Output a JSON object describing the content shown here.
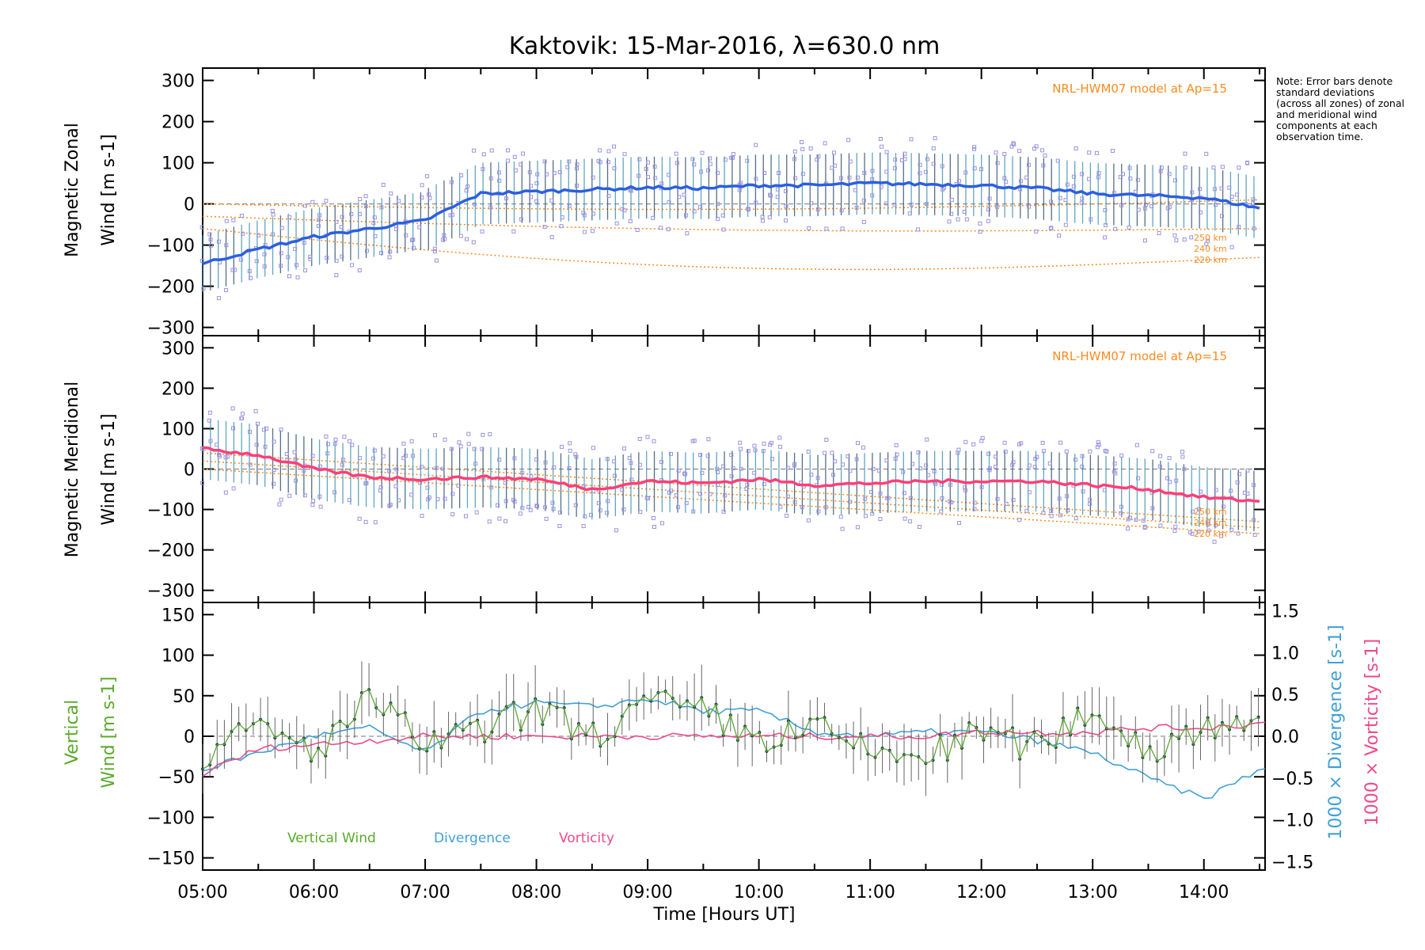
{
  "figure": {
    "title": "Kaktovik: 15-Mar-2016, λ=630.0 nm",
    "note": "Note: Error bars denote standard deviations (across all zones) of zonal and meridional wind components at each observation time.",
    "xlabel": "Time [Hours UT]",
    "colors": {
      "zonal": "#2b5fe0",
      "meridional": "#ff3f78",
      "vertical": "#5aaa2a",
      "divergence": "#3fa0d8",
      "vorticity": "#f04a8a",
      "model": "#ff8a1e",
      "scatter": "#9a94e0"
    }
  },
  "chart_data": [
    {
      "type": "line",
      "panel": "zonal",
      "ylabel_line1": "Magnetic Zonal",
      "ylabel_line2": "Wind [m s-1]",
      "model_label": "NRL-HWM07 model at Ap=15",
      "altitude_labels": [
        "250 km",
        "240 km",
        "220 km"
      ],
      "ylim": [
        -320,
        330
      ],
      "yticks": [
        300,
        200,
        100,
        0,
        -100,
        -200,
        -300
      ],
      "x_hours": [
        5.0,
        5.5,
        6.0,
        6.5,
        7.0,
        7.5,
        8.0,
        8.5,
        9.0,
        9.5,
        10.0,
        10.5,
        11.0,
        11.5,
        12.0,
        12.5,
        13.0,
        13.5,
        14.0,
        14.5
      ],
      "series": [
        {
          "values": [
            -145,
            -110,
            -80,
            -60,
            -40,
            25,
            30,
            35,
            40,
            38,
            45,
            45,
            50,
            48,
            45,
            38,
            25,
            20,
            15,
            -10
          ]
        }
      ]
    },
    {
      "type": "line",
      "panel": "meridional",
      "ylabel_line1": "Magnetic Meridional",
      "ylabel_line2": "Wind [m s-1]",
      "model_label": "NRL-HWM07 model at Ap=15",
      "altitude_labels": [
        "250 km",
        "240 km",
        "220 km"
      ],
      "ylim": [
        -330,
        330
      ],
      "yticks": [
        300,
        200,
        100,
        0,
        -100,
        -200,
        -300
      ],
      "x_hours": [
        5.0,
        5.5,
        6.0,
        6.5,
        7.0,
        7.5,
        8.0,
        8.5,
        9.0,
        9.5,
        10.0,
        10.5,
        11.0,
        11.5,
        12.0,
        12.5,
        13.0,
        13.5,
        14.0,
        14.5
      ],
      "series": [
        {
          "values": [
            50,
            35,
            0,
            -20,
            -25,
            -20,
            -25,
            -50,
            -30,
            -35,
            -25,
            -40,
            -35,
            -30,
            -30,
            -30,
            -40,
            -50,
            -70,
            -80
          ]
        }
      ]
    },
    {
      "type": "line",
      "panel": "vertical",
      "ylabel_line1": "Vertical",
      "ylabel_line2": "Wind [m s-1]",
      "y2label": "1000 × Divergence [s-1]",
      "y3label": "1000 × Vorticity [s-1]",
      "ylim": [
        -165,
        165
      ],
      "yticks": [
        150,
        100,
        50,
        0,
        -50,
        -100,
        -150
      ],
      "y2lim": [
        -1.6,
        1.6
      ],
      "y2ticks": [
        "1.5",
        "1.0",
        "0.5",
        "0.0",
        "−0.5",
        "−1.0",
        "−1.5"
      ],
      "x_hours": [
        5.0,
        5.5,
        6.0,
        6.5,
        7.0,
        7.5,
        8.0,
        8.5,
        9.0,
        9.5,
        10.0,
        10.5,
        11.0,
        11.5,
        12.0,
        12.5,
        13.0,
        13.5,
        14.0,
        14.5
      ],
      "series": [
        {
          "name": "Vertical Wind",
          "values": [
            -25,
            10,
            -20,
            45,
            -10,
            5,
            35,
            0,
            40,
            30,
            -5,
            10,
            -20,
            -25,
            5,
            -15,
            35,
            -20,
            15,
            25
          ]
        },
        {
          "name": "Divergence",
          "values": [
            -0.4,
            -0.2,
            0.0,
            0.1,
            -0.2,
            0.3,
            0.4,
            0.35,
            0.45,
            0.3,
            0.3,
            0.05,
            0.0,
            0.05,
            0.05,
            -0.05,
            -0.2,
            -0.5,
            -0.75,
            -0.4
          ]
        },
        {
          "name": "Vorticity",
          "values": [
            -0.45,
            -0.15,
            -0.1,
            -0.05,
            0.0,
            0.0,
            0.0,
            0.0,
            0.0,
            0.0,
            0.0,
            0.0,
            0.0,
            0.0,
            0.05,
            0.05,
            0.05,
            0.1,
            0.1,
            0.15
          ]
        }
      ]
    }
  ],
  "xaxis": {
    "range_hours": [
      5.0,
      14.55
    ],
    "tick_labels": [
      "05:00",
      "06:00",
      "07:00",
      "08:00",
      "09:00",
      "10:00",
      "11:00",
      "12:00",
      "13:00",
      "14:00"
    ]
  }
}
